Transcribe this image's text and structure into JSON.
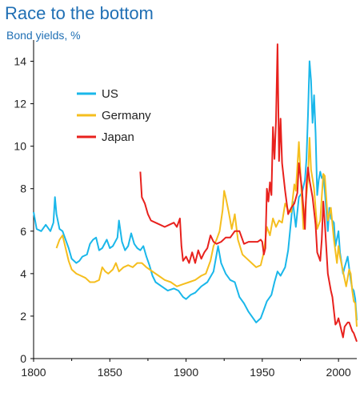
{
  "title": "Race to the bottom",
  "subtitle": "Bond yields, %",
  "chart_data": {
    "type": "line",
    "title": "Race to the bottom",
    "subtitle": "Bond yields, %",
    "xlabel": "",
    "ylabel": "",
    "xlim": [
      1800,
      2012
    ],
    "ylim": [
      0,
      15
    ],
    "xticks": [
      1800,
      1850,
      1900,
      1950,
      2000
    ],
    "yticks": [
      0,
      2,
      4,
      6,
      8,
      10,
      12,
      14
    ],
    "grid": false,
    "legend_position": "top-left",
    "series": [
      {
        "name": "US",
        "color": "#1ab7ea",
        "points": [
          [
            1800,
            6.9
          ],
          [
            1802,
            6.1
          ],
          [
            1805,
            6.0
          ],
          [
            1808,
            6.3
          ],
          [
            1811,
            6.0
          ],
          [
            1813,
            6.4
          ],
          [
            1814,
            7.6
          ],
          [
            1815,
            6.8
          ],
          [
            1817,
            6.1
          ],
          [
            1819,
            6.0
          ],
          [
            1821,
            5.6
          ],
          [
            1823,
            5.2
          ],
          [
            1825,
            4.7
          ],
          [
            1828,
            4.5
          ],
          [
            1830,
            4.6
          ],
          [
            1832,
            4.8
          ],
          [
            1835,
            4.9
          ],
          [
            1837,
            5.4
          ],
          [
            1839,
            5.6
          ],
          [
            1841,
            5.7
          ],
          [
            1843,
            5.1
          ],
          [
            1845,
            5.2
          ],
          [
            1848,
            5.6
          ],
          [
            1850,
            5.2
          ],
          [
            1852,
            5.3
          ],
          [
            1855,
            5.7
          ],
          [
            1856,
            6.5
          ],
          [
            1858,
            5.5
          ],
          [
            1860,
            5.1
          ],
          [
            1862,
            5.3
          ],
          [
            1864,
            5.9
          ],
          [
            1866,
            5.4
          ],
          [
            1868,
            5.2
          ],
          [
            1870,
            5.1
          ],
          [
            1872,
            5.3
          ],
          [
            1874,
            4.8
          ],
          [
            1876,
            4.4
          ],
          [
            1878,
            3.9
          ],
          [
            1880,
            3.6
          ],
          [
            1884,
            3.4
          ],
          [
            1888,
            3.2
          ],
          [
            1892,
            3.3
          ],
          [
            1895,
            3.2
          ],
          [
            1898,
            2.9
          ],
          [
            1900,
            2.8
          ],
          [
            1903,
            3.0
          ],
          [
            1906,
            3.1
          ],
          [
            1910,
            3.4
          ],
          [
            1914,
            3.6
          ],
          [
            1918,
            4.1
          ],
          [
            1920,
            4.9
          ],
          [
            1921,
            5.3
          ],
          [
            1923,
            4.5
          ],
          [
            1926,
            4.0
          ],
          [
            1929,
            3.7
          ],
          [
            1932,
            3.6
          ],
          [
            1935,
            2.9
          ],
          [
            1938,
            2.6
          ],
          [
            1941,
            2.2
          ],
          [
            1944,
            1.9
          ],
          [
            1946,
            1.7
          ],
          [
            1949,
            1.9
          ],
          [
            1951,
            2.3
          ],
          [
            1953,
            2.7
          ],
          [
            1956,
            3.0
          ],
          [
            1958,
            3.6
          ],
          [
            1960,
            4.1
          ],
          [
            1962,
            3.9
          ],
          [
            1965,
            4.3
          ],
          [
            1967,
            5.1
          ],
          [
            1969,
            6.6
          ],
          [
            1970,
            7.4
          ],
          [
            1972,
            6.2
          ],
          [
            1974,
            7.6
          ],
          [
            1976,
            7.8
          ],
          [
            1978,
            8.4
          ],
          [
            1979,
            9.4
          ],
          [
            1980,
            11.5
          ],
          [
            1981,
            14.0
          ],
          [
            1982,
            13.1
          ],
          [
            1983,
            11.1
          ],
          [
            1984,
            12.4
          ],
          [
            1985,
            10.6
          ],
          [
            1986,
            7.7
          ],
          [
            1987,
            8.4
          ],
          [
            1988,
            8.8
          ],
          [
            1989,
            8.5
          ],
          [
            1990,
            8.6
          ],
          [
            1991,
            7.9
          ],
          [
            1993,
            6.0
          ],
          [
            1994,
            7.1
          ],
          [
            1995,
            6.6
          ],
          [
            1997,
            6.4
          ],
          [
            1998,
            5.3
          ],
          [
            2000,
            6.0
          ],
          [
            2001,
            5.0
          ],
          [
            2003,
            4.0
          ],
          [
            2004,
            4.3
          ],
          [
            2006,
            4.8
          ],
          [
            2008,
            3.7
          ],
          [
            2009,
            3.3
          ],
          [
            2010,
            3.2
          ],
          [
            2011,
            2.8
          ],
          [
            2012,
            1.8
          ]
        ]
      },
      {
        "name": "Germany",
        "color": "#f5be1e",
        "points": [
          [
            1815,
            5.2
          ],
          [
            1817,
            5.6
          ],
          [
            1819,
            5.8
          ],
          [
            1821,
            5.2
          ],
          [
            1823,
            4.6
          ],
          [
            1825,
            4.2
          ],
          [
            1828,
            4.0
          ],
          [
            1831,
            3.9
          ],
          [
            1834,
            3.8
          ],
          [
            1837,
            3.6
          ],
          [
            1840,
            3.6
          ],
          [
            1843,
            3.7
          ],
          [
            1845,
            4.3
          ],
          [
            1847,
            4.1
          ],
          [
            1849,
            4.0
          ],
          [
            1852,
            4.2
          ],
          [
            1854,
            4.5
          ],
          [
            1856,
            4.1
          ],
          [
            1859,
            4.3
          ],
          [
            1862,
            4.4
          ],
          [
            1865,
            4.3
          ],
          [
            1868,
            4.5
          ],
          [
            1871,
            4.5
          ],
          [
            1874,
            4.3
          ],
          [
            1878,
            4.1
          ],
          [
            1882,
            3.9
          ],
          [
            1886,
            3.7
          ],
          [
            1890,
            3.6
          ],
          [
            1894,
            3.4
          ],
          [
            1898,
            3.5
          ],
          [
            1902,
            3.6
          ],
          [
            1906,
            3.7
          ],
          [
            1910,
            3.9
          ],
          [
            1913,
            4.0
          ],
          [
            1916,
            4.6
          ],
          [
            1918,
            5.3
          ],
          [
            1920,
            5.6
          ],
          [
            1922,
            6.0
          ],
          [
            1924,
            7.0
          ],
          [
            1925,
            7.9
          ],
          [
            1926,
            7.6
          ],
          [
            1928,
            6.9
          ],
          [
            1930,
            6.1
          ],
          [
            1932,
            6.8
          ],
          [
            1934,
            5.6
          ],
          [
            1937,
            4.9
          ],
          [
            1940,
            4.7
          ],
          [
            1943,
            4.5
          ],
          [
            1946,
            4.3
          ],
          [
            1949,
            4.4
          ],
          [
            1951,
            5.0
          ],
          [
            1953,
            6.2
          ],
          [
            1955,
            5.8
          ],
          [
            1957,
            6.6
          ],
          [
            1959,
            6.2
          ],
          [
            1961,
            6.5
          ],
          [
            1963,
            6.4
          ],
          [
            1965,
            7.3
          ],
          [
            1967,
            7.0
          ],
          [
            1969,
            6.9
          ],
          [
            1971,
            8.2
          ],
          [
            1972,
            7.9
          ],
          [
            1974,
            10.2
          ],
          [
            1975,
            8.8
          ],
          [
            1977,
            6.1
          ],
          [
            1979,
            7.7
          ],
          [
            1980,
            8.5
          ],
          [
            1981,
            10.4
          ],
          [
            1982,
            8.9
          ],
          [
            1984,
            8.0
          ],
          [
            1986,
            6.1
          ],
          [
            1988,
            6.5
          ],
          [
            1990,
            8.7
          ],
          [
            1991,
            8.6
          ],
          [
            1993,
            6.5
          ],
          [
            1995,
            7.1
          ],
          [
            1997,
            5.6
          ],
          [
            1999,
            4.5
          ],
          [
            2000,
            5.3
          ],
          [
            2001,
            4.8
          ],
          [
            2003,
            4.1
          ],
          [
            2005,
            3.4
          ],
          [
            2007,
            4.2
          ],
          [
            2008,
            4.0
          ],
          [
            2009,
            3.2
          ],
          [
            2010,
            2.7
          ],
          [
            2011,
            2.6
          ],
          [
            2012,
            1.5
          ]
        ]
      },
      {
        "name": "Japan",
        "color": "#e8211d",
        "points": [
          [
            1870,
            8.8
          ],
          [
            1871,
            7.6
          ],
          [
            1873,
            7.3
          ],
          [
            1875,
            6.8
          ],
          [
            1877,
            6.5
          ],
          [
            1880,
            6.4
          ],
          [
            1883,
            6.3
          ],
          [
            1886,
            6.2
          ],
          [
            1889,
            6.3
          ],
          [
            1892,
            6.4
          ],
          [
            1894,
            6.2
          ],
          [
            1896,
            6.6
          ],
          [
            1897,
            5.3
          ],
          [
            1898,
            4.6
          ],
          [
            1900,
            4.8
          ],
          [
            1902,
            4.5
          ],
          [
            1904,
            5.0
          ],
          [
            1906,
            4.5
          ],
          [
            1908,
            5.1
          ],
          [
            1910,
            4.7
          ],
          [
            1912,
            5.0
          ],
          [
            1914,
            5.2
          ],
          [
            1916,
            5.8
          ],
          [
            1918,
            5.5
          ],
          [
            1920,
            5.4
          ],
          [
            1923,
            5.5
          ],
          [
            1926,
            5.7
          ],
          [
            1929,
            5.7
          ],
          [
            1932,
            6.0
          ],
          [
            1935,
            6.0
          ],
          [
            1938,
            5.4
          ],
          [
            1941,
            5.5
          ],
          [
            1944,
            5.5
          ],
          [
            1947,
            5.5
          ],
          [
            1949,
            5.6
          ],
          [
            1950,
            5.5
          ],
          [
            1951,
            4.9
          ],
          [
            1952,
            5.2
          ],
          [
            1953,
            8.0
          ],
          [
            1954,
            7.4
          ],
          [
            1955,
            8.3
          ],
          [
            1956,
            7.7
          ],
          [
            1957,
            10.9
          ],
          [
            1958,
            9.4
          ],
          [
            1959,
            11.2
          ],
          [
            1960,
            14.8
          ],
          [
            1961,
            9.3
          ],
          [
            1962,
            11.3
          ],
          [
            1963,
            9.2
          ],
          [
            1965,
            7.9
          ],
          [
            1967,
            6.8
          ],
          [
            1969,
            7.1
          ],
          [
            1971,
            7.3
          ],
          [
            1973,
            7.8
          ],
          [
            1974,
            9.2
          ],
          [
            1975,
            8.6
          ],
          [
            1976,
            8.0
          ],
          [
            1978,
            6.1
          ],
          [
            1979,
            8.2
          ],
          [
            1980,
            9.0
          ],
          [
            1981,
            8.4
          ],
          [
            1983,
            7.6
          ],
          [
            1985,
            6.3
          ],
          [
            1986,
            5.0
          ],
          [
            1988,
            4.6
          ],
          [
            1989,
            5.6
          ],
          [
            1990,
            7.4
          ],
          [
            1991,
            6.4
          ],
          [
            1993,
            4.0
          ],
          [
            1995,
            3.2
          ],
          [
            1996,
            2.9
          ],
          [
            1998,
            1.6
          ],
          [
            1999,
            1.7
          ],
          [
            2000,
            1.9
          ],
          [
            2002,
            1.3
          ],
          [
            2003,
            1.0
          ],
          [
            2004,
            1.5
          ],
          [
            2006,
            1.7
          ],
          [
            2007,
            1.7
          ],
          [
            2008,
            1.5
          ],
          [
            2009,
            1.3
          ],
          [
            2010,
            1.2
          ],
          [
            2011,
            1.0
          ],
          [
            2012,
            0.8
          ]
        ]
      }
    ]
  }
}
